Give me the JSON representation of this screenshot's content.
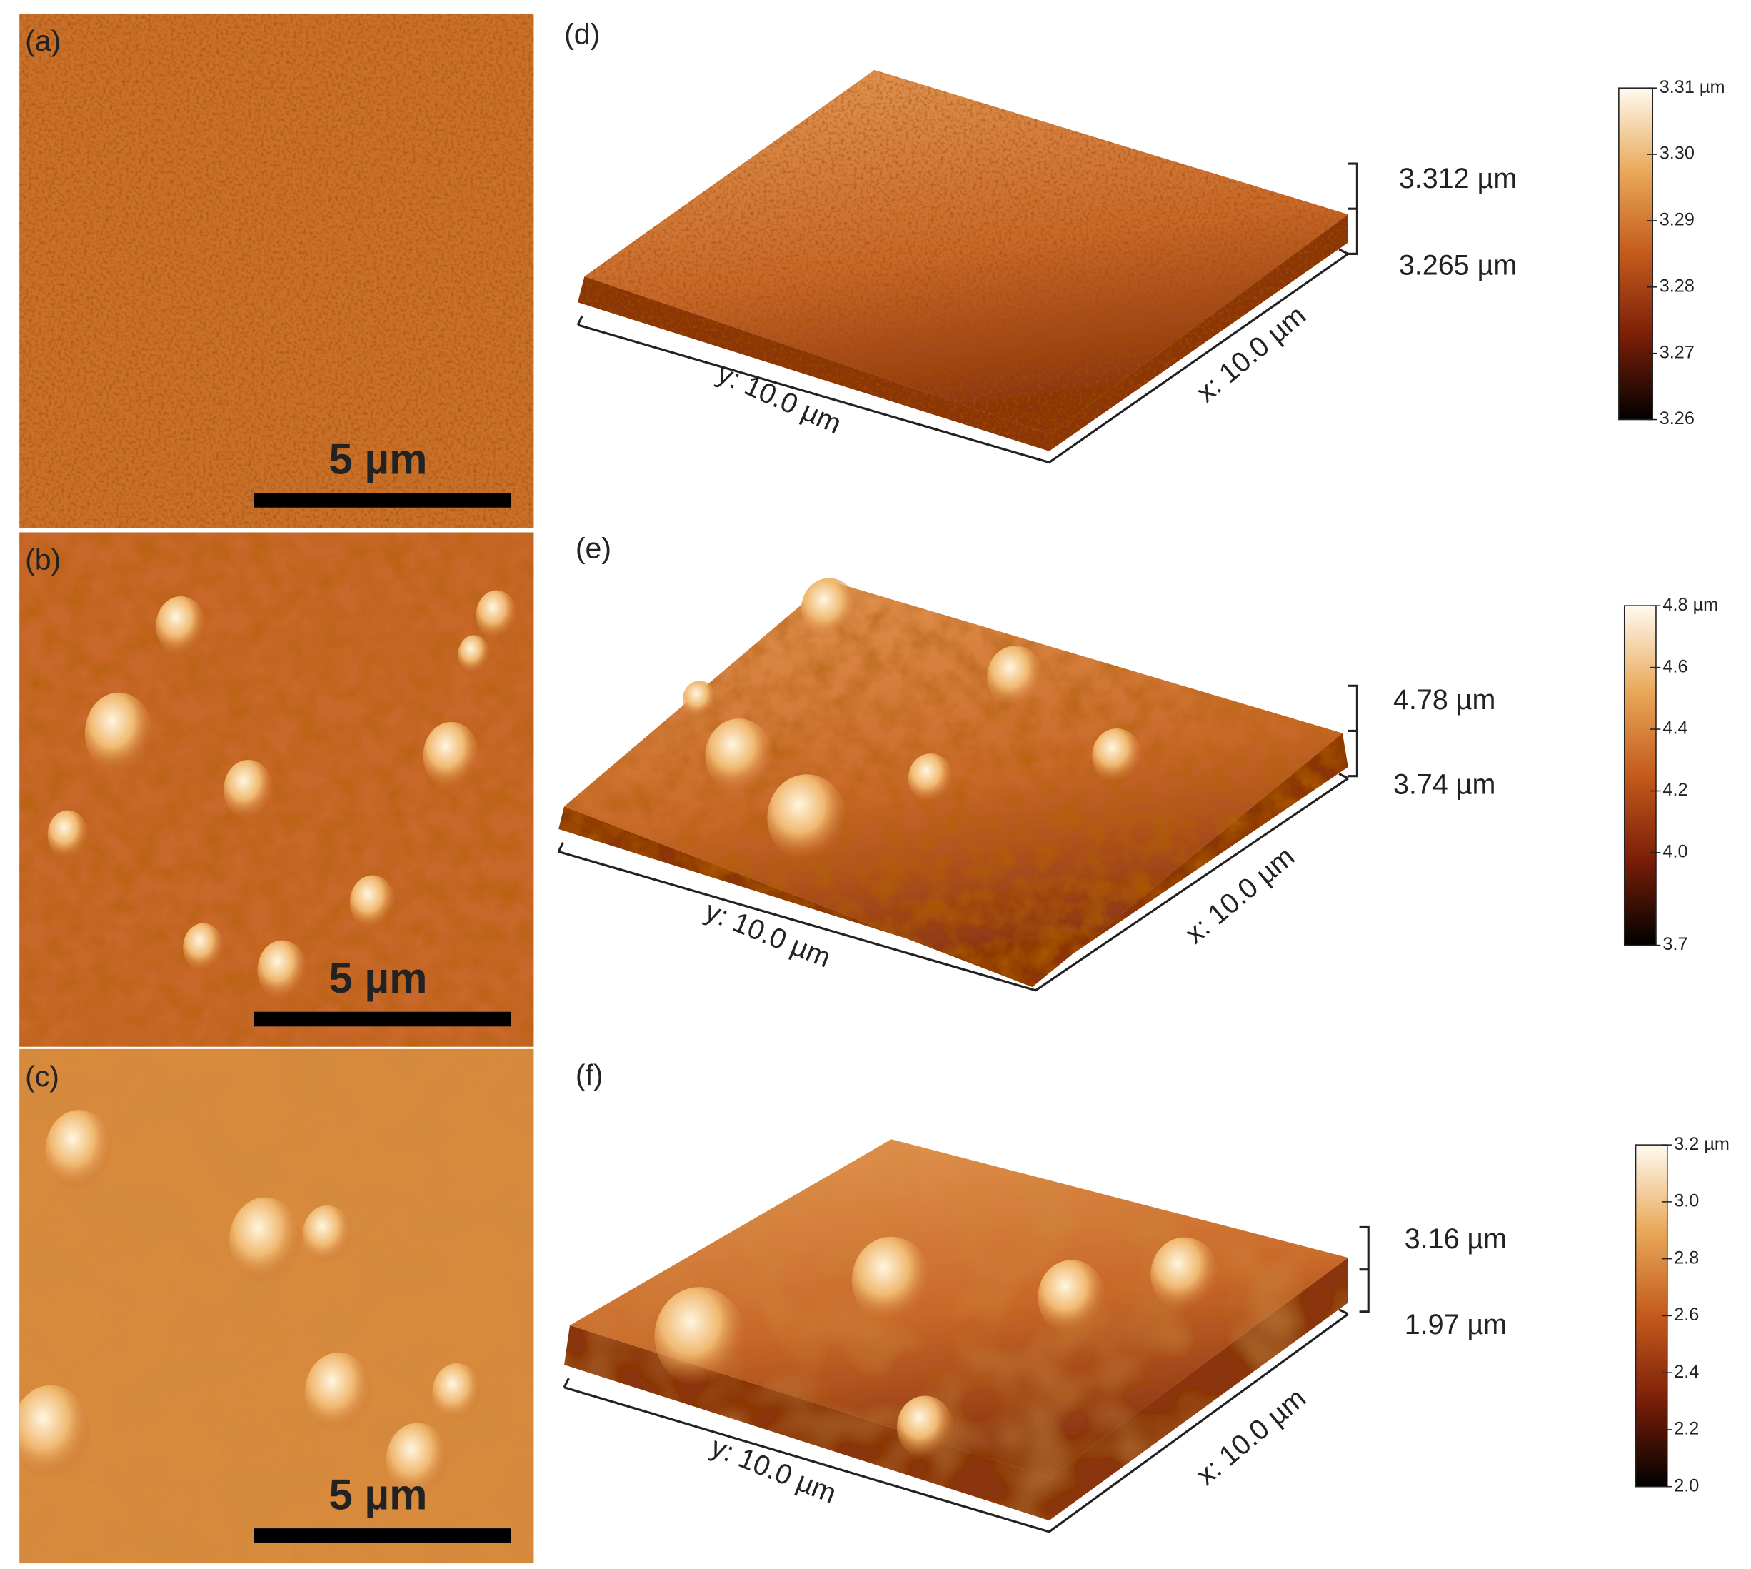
{
  "panels": [
    {
      "label": "(a)",
      "scale_bar": "5 µm"
    },
    {
      "label": "(b)",
      "scale_bar": "5 µm"
    },
    {
      "label": "(c)",
      "scale_bar": "5 µm"
    }
  ],
  "surfaces": [
    {
      "label": "(d)",
      "z_top": "3.312 µm",
      "z_bottom": "3.265 µm",
      "y_axis": "y: 10.0 µm",
      "x_axis": "x: 10.0 µm",
      "colorbar": [
        {
          "value": 3.31,
          "label": "3.31 µm"
        },
        {
          "value": 3.3,
          "label": "3.30"
        },
        {
          "value": 3.29,
          "label": "3.29"
        },
        {
          "value": 3.28,
          "label": "3.28"
        },
        {
          "value": 3.27,
          "label": "3.27"
        },
        {
          "value": 3.26,
          "label": "3.26"
        }
      ]
    },
    {
      "label": "(e)",
      "z_top": "4.78 µm",
      "z_bottom": "3.74 µm",
      "y_axis": "y: 10.0 µm",
      "x_axis": "x: 10.0 µm",
      "colorbar": [
        {
          "value": 4.8,
          "label": "4.8 µm"
        },
        {
          "value": 4.6,
          "label": "4.6"
        },
        {
          "value": 4.4,
          "label": "4.4"
        },
        {
          "value": 4.2,
          "label": "4.2"
        },
        {
          "value": 4.0,
          "label": "4.0"
        },
        {
          "value": 3.7,
          "label": "3.7"
        }
      ]
    },
    {
      "label": "(f)",
      "z_top": "3.16 µm",
      "z_bottom": "1.97 µm",
      "y_axis": "y: 10.0 µm",
      "x_axis": "x: 10.0 µm",
      "colorbar": [
        {
          "value": 3.2,
          "label": "3.2 µm"
        },
        {
          "value": 3.0,
          "label": "3.0"
        },
        {
          "value": 2.8,
          "label": "2.8"
        },
        {
          "value": 2.6,
          "label": "2.6"
        },
        {
          "value": 2.4,
          "label": "2.4"
        },
        {
          "value": 2.2,
          "label": "2.2"
        },
        {
          "value": 2.0,
          "label": "2.0"
        }
      ]
    }
  ]
}
